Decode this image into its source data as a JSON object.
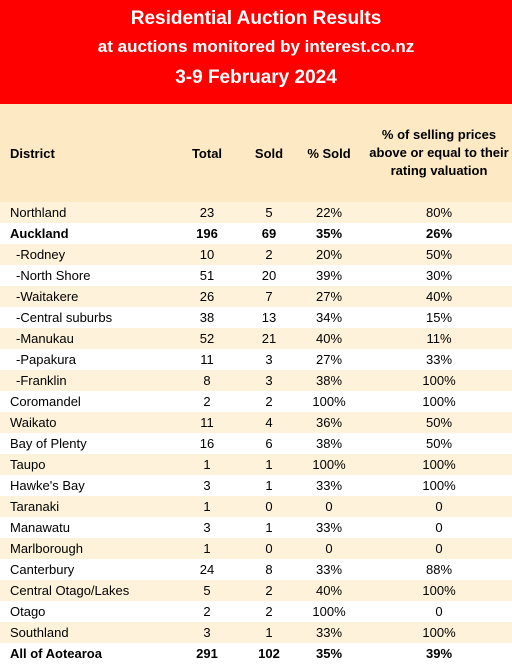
{
  "header": {
    "title": "Residential Auction Results",
    "subtitle": "at auctions monitored by interest.co.nz",
    "date_range": "3-9 February 2024"
  },
  "colors": {
    "banner": "#ff0000",
    "row_tint": "#fef2db",
    "header_tint": "#fde9c4"
  },
  "columns": {
    "district": "District",
    "total": "Total",
    "sold": "Sold",
    "pct_sold": "% Sold",
    "pct_above_rv": "% of selling prices above or equal to their rating valuation"
  },
  "rows": [
    {
      "district": "Northland",
      "total": "23",
      "sold": "5",
      "pct_sold": "22%",
      "pct_above_rv": "80%",
      "bold": false,
      "sub": false
    },
    {
      "district": "Auckland",
      "total": "196",
      "sold": "69",
      "pct_sold": "35%",
      "pct_above_rv": "26%",
      "bold": true,
      "sub": false
    },
    {
      "district": "-Rodney",
      "total": "10",
      "sold": "2",
      "pct_sold": "20%",
      "pct_above_rv": "50%",
      "bold": false,
      "sub": true
    },
    {
      "district": "-North Shore",
      "total": "51",
      "sold": "20",
      "pct_sold": "39%",
      "pct_above_rv": "30%",
      "bold": false,
      "sub": true
    },
    {
      "district": "-Waitakere",
      "total": "26",
      "sold": "7",
      "pct_sold": "27%",
      "pct_above_rv": "40%",
      "bold": false,
      "sub": true
    },
    {
      "district": "-Central suburbs",
      "total": "38",
      "sold": "13",
      "pct_sold": "34%",
      "pct_above_rv": "15%",
      "bold": false,
      "sub": true
    },
    {
      "district": "-Manukau",
      "total": "52",
      "sold": "21",
      "pct_sold": "40%",
      "pct_above_rv": "11%",
      "bold": false,
      "sub": true
    },
    {
      "district": "-Papakura",
      "total": "11",
      "sold": "3",
      "pct_sold": "27%",
      "pct_above_rv": "33%",
      "bold": false,
      "sub": true
    },
    {
      "district": "-Franklin",
      "total": "8",
      "sold": "3",
      "pct_sold": "38%",
      "pct_above_rv": "100%",
      "bold": false,
      "sub": true
    },
    {
      "district": "Coromandel",
      "total": "2",
      "sold": "2",
      "pct_sold": "100%",
      "pct_above_rv": "100%",
      "bold": false,
      "sub": false
    },
    {
      "district": "Waikato",
      "total": "11",
      "sold": "4",
      "pct_sold": "36%",
      "pct_above_rv": "50%",
      "bold": false,
      "sub": false
    },
    {
      "district": "Bay of Plenty",
      "total": "16",
      "sold": "6",
      "pct_sold": "38%",
      "pct_above_rv": "50%",
      "bold": false,
      "sub": false
    },
    {
      "district": "Taupo",
      "total": "1",
      "sold": "1",
      "pct_sold": "100%",
      "pct_above_rv": "100%",
      "bold": false,
      "sub": false
    },
    {
      "district": "Hawke's Bay",
      "total": "3",
      "sold": "1",
      "pct_sold": "33%",
      "pct_above_rv": "100%",
      "bold": false,
      "sub": false
    },
    {
      "district": "Taranaki",
      "total": "1",
      "sold": "0",
      "pct_sold": "0",
      "pct_above_rv": "0",
      "bold": false,
      "sub": false
    },
    {
      "district": "Manawatu",
      "total": "3",
      "sold": "1",
      "pct_sold": "33%",
      "pct_above_rv": "0",
      "bold": false,
      "sub": false
    },
    {
      "district": "Marlborough",
      "total": "1",
      "sold": "0",
      "pct_sold": "0",
      "pct_above_rv": "0",
      "bold": false,
      "sub": false
    },
    {
      "district": "Canterbury",
      "total": "24",
      "sold": "8",
      "pct_sold": "33%",
      "pct_above_rv": "88%",
      "bold": false,
      "sub": false
    },
    {
      "district": "Central Otago/Lakes",
      "total": "5",
      "sold": "2",
      "pct_sold": "40%",
      "pct_above_rv": "100%",
      "bold": false,
      "sub": false
    },
    {
      "district": "Otago",
      "total": "2",
      "sold": "2",
      "pct_sold": "100%",
      "pct_above_rv": "0",
      "bold": false,
      "sub": false
    },
    {
      "district": "Southland",
      "total": "3",
      "sold": "1",
      "pct_sold": "33%",
      "pct_above_rv": "100%",
      "bold": false,
      "sub": false
    },
    {
      "district": "All of Aotearoa",
      "total": "291",
      "sold": "102",
      "pct_sold": "35%",
      "pct_above_rv": "39%",
      "bold": true,
      "sub": false
    }
  ]
}
